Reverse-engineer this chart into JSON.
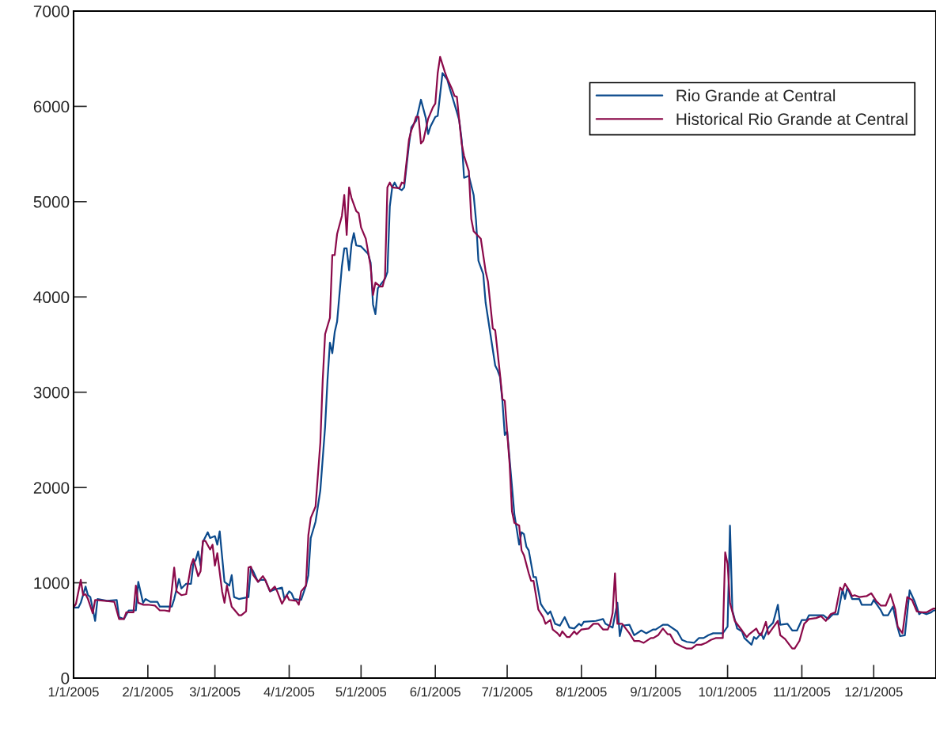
{
  "chart_data": {
    "type": "line",
    "xlim": [
      "2005-01-01",
      "2005-12-27"
    ],
    "ylim": [
      0,
      7000
    ],
    "yticks": [
      0,
      1000,
      2000,
      3000,
      4000,
      5000,
      6000,
      7000
    ],
    "xticks": [
      {
        "value": "2005-01-01",
        "label": "1/1/2005"
      },
      {
        "value": "2005-02-01",
        "label": "2/1/2005"
      },
      {
        "value": "2005-03-01",
        "label": "3/1/2005"
      },
      {
        "value": "2005-04-01",
        "label": "4/1/2005"
      },
      {
        "value": "2005-05-01",
        "label": "5/1/2005"
      },
      {
        "value": "2005-06-01",
        "label": "6/1/2005"
      },
      {
        "value": "2005-07-01",
        "label": "7/1/2005"
      },
      {
        "value": "2005-08-01",
        "label": "8/1/2005"
      },
      {
        "value": "2005-09-01",
        "label": "9/1/2005"
      },
      {
        "value": "2005-10-01",
        "label": "10/1/2005"
      },
      {
        "value": "2005-11-01",
        "label": "11/1/2005"
      },
      {
        "value": "2005-12-01",
        "label": "12/1/2005"
      }
    ],
    "grid": false,
    "legend": "top right",
    "marker": "none",
    "line_style": "solid",
    "series": [
      {
        "name": "Rio Grande at Central",
        "color": "#0b4a8c",
        "x": [
          "2005-01-01",
          "2005-01-03",
          "2005-01-04",
          "2005-01-06",
          "2005-01-07",
          "2005-01-08",
          "2005-01-10",
          "2005-01-11",
          "2005-01-15",
          "2005-01-19",
          "2005-01-20",
          "2005-01-22",
          "2005-01-24",
          "2005-01-27",
          "2005-01-28",
          "2005-01-30",
          "2005-01-31",
          "2005-02-02",
          "2005-02-05",
          "2005-02-06",
          "2005-02-11",
          "2005-02-12",
          "2005-02-14",
          "2005-02-15",
          "2005-02-17",
          "2005-02-19",
          "2005-02-20",
          "2005-02-21",
          "2005-02-22",
          "2005-02-23",
          "2005-02-24",
          "2005-02-26",
          "2005-02-27",
          "2005-03-01",
          "2005-03-02",
          "2005-03-03",
          "2005-03-05",
          "2005-03-07",
          "2005-03-08",
          "2005-03-09",
          "2005-03-11",
          "2005-03-15",
          "2005-03-16",
          "2005-03-17",
          "2005-03-19",
          "2005-03-20",
          "2005-03-22",
          "2005-03-24",
          "2005-03-26",
          "2005-03-29",
          "2005-03-30",
          "2005-04-01",
          "2005-04-02",
          "2005-04-03",
          "2005-04-06",
          "2005-04-08",
          "2005-04-09",
          "2005-04-10",
          "2005-04-12",
          "2005-04-14",
          "2005-04-16",
          "2005-04-17",
          "2005-04-18",
          "2005-04-19",
          "2005-04-20",
          "2005-04-21",
          "2005-04-23",
          "2005-04-24",
          "2005-04-25",
          "2005-04-26",
          "2005-04-27",
          "2005-04-28",
          "2005-04-29",
          "2005-05-01",
          "2005-05-04",
          "2005-05-05",
          "2005-05-06",
          "2005-05-07",
          "2005-05-08",
          "2005-05-11",
          "2005-05-12",
          "2005-05-13",
          "2005-05-14",
          "2005-05-15",
          "2005-05-16",
          "2005-05-18",
          "2005-05-19",
          "2005-05-21",
          "2005-05-22",
          "2005-05-24",
          "2005-05-26",
          "2005-05-28",
          "2005-05-29",
          "2005-05-30",
          "2005-06-01",
          "2005-06-02",
          "2005-06-04",
          "2005-06-06",
          "2005-06-07",
          "2005-06-10",
          "2005-06-11",
          "2005-06-12",
          "2005-06-13",
          "2005-06-15",
          "2005-06-17",
          "2005-06-18",
          "2005-06-19",
          "2005-06-21",
          "2005-06-22",
          "2005-06-26",
          "2005-06-27",
          "2005-06-28",
          "2005-06-29",
          "2005-06-30",
          "2005-07-01",
          "2005-07-04",
          "2005-07-06",
          "2005-07-07",
          "2005-07-08",
          "2005-07-09",
          "2005-07-10",
          "2005-07-12",
          "2005-07-13",
          "2005-07-15",
          "2005-07-16",
          "2005-07-18",
          "2005-07-19",
          "2005-07-21",
          "2005-07-23",
          "2005-07-25",
          "2005-07-27",
          "2005-07-29",
          "2005-07-31",
          "2005-08-01",
          "2005-08-02",
          "2005-08-07",
          "2005-08-10",
          "2005-08-11",
          "2005-08-14",
          "2005-08-16",
          "2005-08-17",
          "2005-08-18",
          "2005-08-21",
          "2005-08-23",
          "2005-08-26",
          "2005-08-28",
          "2005-08-31",
          "2005-09-01",
          "2005-09-04",
          "2005-09-06",
          "2005-09-10",
          "2005-09-12",
          "2005-09-14",
          "2005-09-17",
          "2005-09-19",
          "2005-09-21",
          "2005-09-23",
          "2005-09-25",
          "2005-09-29",
          "2005-10-01",
          "2005-10-02",
          "2005-10-03",
          "2005-10-05",
          "2005-10-07",
          "2005-10-08",
          "2005-10-11",
          "2005-10-12",
          "2005-10-13",
          "2005-10-15",
          "2005-10-16",
          "2005-10-18",
          "2005-10-20",
          "2005-10-22",
          "2005-10-23",
          "2005-10-26",
          "2005-10-28",
          "2005-10-30",
          "2005-11-01",
          "2005-11-03",
          "2005-11-04",
          "2005-11-07",
          "2005-11-10",
          "2005-11-12",
          "2005-11-14",
          "2005-11-16",
          "2005-11-18",
          "2005-11-19",
          "2005-11-20",
          "2005-11-22",
          "2005-11-25",
          "2005-11-26",
          "2005-11-30",
          "2005-12-01",
          "2005-12-04",
          "2005-12-05",
          "2005-12-07",
          "2005-12-09",
          "2005-12-11",
          "2005-12-12",
          "2005-12-14",
          "2005-12-16",
          "2005-12-18",
          "2005-12-20",
          "2005-12-21",
          "2005-12-23",
          "2005-12-25",
          "2005-12-26",
          "2005-12-27"
        ],
        "values": [
          740,
          740,
          790,
          960,
          870,
          850,
          600,
          830,
          810,
          820,
          640,
          620,
          710,
          710,
          1010,
          790,
          830,
          800,
          800,
          750,
          750,
          830,
          1040,
          940,
          990,
          990,
          1200,
          1240,
          1330,
          1180,
          1430,
          1530,
          1470,
          1490,
          1400,
          1540,
          1010,
          970,
          1080,
          850,
          830,
          850,
          1160,
          1120,
          1010,
          1030,
          1030,
          910,
          930,
          950,
          830,
          910,
          890,
          830,
          820,
          970,
          1080,
          1470,
          1640,
          1970,
          2640,
          3130,
          3520,
          3410,
          3630,
          3740,
          4320,
          4510,
          4510,
          4280,
          4550,
          4670,
          4540,
          4530,
          4450,
          4360,
          3920,
          3820,
          4090,
          4190,
          4260,
          4950,
          5150,
          5200,
          5150,
          5120,
          5150,
          5600,
          5780,
          5850,
          6070,
          5880,
          5710,
          5790,
          5890,
          5900,
          6350,
          6280,
          6190,
          5940,
          5850,
          5650,
          5250,
          5270,
          5070,
          4800,
          4380,
          4240,
          3940,
          3280,
          3230,
          3160,
          2910,
          2550,
          2590,
          1720,
          1400,
          1530,
          1510,
          1380,
          1340,
          1060,
          1060,
          780,
          740,
          670,
          700,
          570,
          550,
          640,
          530,
          520,
          570,
          550,
          590,
          600,
          620,
          570,
          530,
          790,
          440,
          550,
          560,
          450,
          500,
          470,
          510,
          510,
          560,
          560,
          490,
          400,
          380,
          370,
          420,
          420,
          450,
          470,
          470,
          540,
          1600,
          710,
          520,
          490,
          420,
          350,
          430,
          410,
          470,
          410,
          530,
          580,
          770,
          560,
          570,
          500,
          500,
          610,
          610,
          660,
          660,
          660,
          620,
          670,
          670,
          930,
          830,
          950,
          830,
          830,
          770,
          770,
          820,
          710,
          660,
          660,
          750,
          530,
          440,
          450,
          920,
          810,
          670,
          690,
          670,
          690,
          710,
          710
        ]
      },
      {
        "name": "Historical Rio Grande at Central",
        "color": "#8b0a4a",
        "x": [
          "2005-01-01",
          "2005-01-02",
          "2005-01-04",
          "2005-01-05",
          "2005-01-06",
          "2005-01-07",
          "2005-01-09",
          "2005-01-10",
          "2005-01-14",
          "2005-01-18",
          "2005-01-20",
          "2005-01-22",
          "2005-01-23",
          "2005-01-26",
          "2005-01-27",
          "2005-01-28",
          "2005-01-30",
          "2005-02-01",
          "2005-02-04",
          "2005-02-06",
          "2005-02-08",
          "2005-02-10",
          "2005-02-12",
          "2005-02-13",
          "2005-02-15",
          "2005-02-17",
          "2005-02-19",
          "2005-02-20",
          "2005-02-22",
          "2005-02-23",
          "2005-02-24",
          "2005-02-25",
          "2005-02-27",
          "2005-02-28",
          "2005-03-01",
          "2005-03-02",
          "2005-03-04",
          "2005-03-05",
          "2005-03-06",
          "2005-03-08",
          "2005-03-09",
          "2005-03-11",
          "2005-03-12",
          "2005-03-14",
          "2005-03-15",
          "2005-03-16",
          "2005-03-17",
          "2005-03-19",
          "2005-03-21",
          "2005-03-22",
          "2005-03-24",
          "2005-03-26",
          "2005-03-27",
          "2005-03-29",
          "2005-03-31",
          "2005-04-01",
          "2005-04-04",
          "2005-04-05",
          "2005-04-06",
          "2005-04-08",
          "2005-04-09",
          "2005-04-10",
          "2005-04-12",
          "2005-04-14",
          "2005-04-15",
          "2005-04-16",
          "2005-04-18",
          "2005-04-19",
          "2005-04-20",
          "2005-04-21",
          "2005-04-23",
          "2005-04-24",
          "2005-04-25",
          "2005-04-26",
          "2005-04-27",
          "2005-04-29",
          "2005-04-30",
          "2005-05-01",
          "2005-05-03",
          "2005-05-05",
          "2005-05-06",
          "2005-05-07",
          "2005-05-09",
          "2005-05-10",
          "2005-05-11",
          "2005-05-12",
          "2005-05-13",
          "2005-05-14",
          "2005-05-17",
          "2005-05-18",
          "2005-05-19",
          "2005-05-21",
          "2005-05-22",
          "2005-05-23",
          "2005-05-24",
          "2005-05-25",
          "2005-05-26",
          "2005-05-27",
          "2005-05-29",
          "2005-05-31",
          "2005-06-01",
          "2005-06-02",
          "2005-06-03",
          "2005-06-05",
          "2005-06-06",
          "2005-06-08",
          "2005-06-09",
          "2005-06-10",
          "2005-06-11",
          "2005-06-12",
          "2005-06-13",
          "2005-06-15",
          "2005-06-16",
          "2005-06-17",
          "2005-06-20",
          "2005-06-22",
          "2005-06-23",
          "2005-06-25",
          "2005-06-26",
          "2005-06-28",
          "2005-06-29",
          "2005-06-30",
          "2005-07-02",
          "2005-07-03",
          "2005-07-04",
          "2005-07-06",
          "2005-07-07",
          "2005-07-08",
          "2005-07-10",
          "2005-07-11",
          "2005-07-12",
          "2005-07-14",
          "2005-07-16",
          "2005-07-17",
          "2005-07-19",
          "2005-07-20",
          "2005-07-22",
          "2005-07-23",
          "2005-07-24",
          "2005-07-26",
          "2005-07-27",
          "2005-07-29",
          "2005-07-30",
          "2005-08-01",
          "2005-08-04",
          "2005-08-06",
          "2005-08-08",
          "2005-08-10",
          "2005-08-12",
          "2005-08-13",
          "2005-08-14",
          "2005-08-15",
          "2005-08-16",
          "2005-08-18",
          "2005-08-21",
          "2005-08-23",
          "2005-08-25",
          "2005-08-27",
          "2005-08-30",
          "2005-08-31",
          "2005-09-02",
          "2005-09-04",
          "2005-09-06",
          "2005-09-07",
          "2005-09-09",
          "2005-09-12",
          "2005-09-14",
          "2005-09-16",
          "2005-09-18",
          "2005-09-20",
          "2005-09-22",
          "2005-09-24",
          "2005-09-26",
          "2005-09-29",
          "2005-09-30",
          "2005-10-01",
          "2005-10-02",
          "2005-10-04",
          "2005-10-07",
          "2005-10-09",
          "2005-10-10",
          "2005-10-13",
          "2005-10-14",
          "2005-10-15",
          "2005-10-17",
          "2005-10-18",
          "2005-10-20",
          "2005-10-22",
          "2005-10-23",
          "2005-10-25",
          "2005-10-28",
          "2005-10-29",
          "2005-10-31",
          "2005-11-02",
          "2005-11-04",
          "2005-11-07",
          "2005-11-09",
          "2005-11-11",
          "2005-11-13",
          "2005-11-15",
          "2005-11-17",
          "2005-11-18",
          "2005-11-19",
          "2005-11-21",
          "2005-11-22",
          "2005-11-23",
          "2005-11-25",
          "2005-11-28",
          "2005-11-30",
          "2005-12-02",
          "2005-12-04",
          "2005-12-06",
          "2005-12-08",
          "2005-12-10",
          "2005-12-11",
          "2005-12-13",
          "2005-12-15",
          "2005-12-17",
          "2005-12-19",
          "2005-12-21",
          "2005-12-23",
          "2005-12-26",
          "2005-12-27"
        ],
        "values": [
          740,
          780,
          1030,
          870,
          880,
          830,
          680,
          820,
          810,
          800,
          620,
          620,
          690,
          690,
          970,
          790,
          770,
          770,
          760,
          710,
          710,
          700,
          1160,
          910,
          870,
          880,
          1180,
          1250,
          1070,
          1120,
          1440,
          1440,
          1350,
          1400,
          1180,
          1310,
          910,
          790,
          970,
          750,
          720,
          660,
          660,
          700,
          1160,
          1170,
          1080,
          1010,
          1070,
          1030,
          910,
          960,
          910,
          780,
          870,
          820,
          810,
          770,
          910,
          970,
          1500,
          1680,
          1800,
          2470,
          3130,
          3610,
          3780,
          4440,
          4440,
          4660,
          4850,
          5070,
          4650,
          5150,
          5040,
          4900,
          4880,
          4730,
          4610,
          4320,
          4020,
          4150,
          4110,
          4110,
          4210,
          5150,
          5200,
          5150,
          5140,
          5200,
          5190,
          5650,
          5750,
          5810,
          5890,
          5890,
          5610,
          5640,
          5870,
          5990,
          6030,
          6350,
          6520,
          6360,
          6290,
          6180,
          6110,
          6100,
          5850,
          5610,
          5480,
          5320,
          4820,
          4690,
          4610,
          4270,
          4160,
          3670,
          3650,
          3190,
          2930,
          2910,
          2250,
          1750,
          1630,
          1600,
          1340,
          1290,
          1100,
          1020,
          1020,
          720,
          640,
          570,
          610,
          510,
          470,
          440,
          490,
          430,
          430,
          490,
          460,
          510,
          520,
          570,
          570,
          510,
          510,
          570,
          680,
          1100,
          570,
          570,
          470,
          390,
          390,
          370,
          420,
          420,
          450,
          520,
          460,
          460,
          370,
          330,
          310,
          310,
          350,
          350,
          370,
          400,
          420,
          420,
          1320,
          1200,
          790,
          600,
          500,
          430,
          460,
          520,
          470,
          450,
          590,
          460,
          530,
          600,
          450,
          410,
          310,
          310,
          390,
          570,
          620,
          630,
          650,
          600,
          670,
          690,
          950,
          920,
          990,
          910,
          860,
          870,
          850,
          860,
          890,
          810,
          760,
          760,
          880,
          720,
          540,
          470,
          850,
          820,
          700,
          690,
          690,
          730,
          730
        ]
      }
    ]
  }
}
